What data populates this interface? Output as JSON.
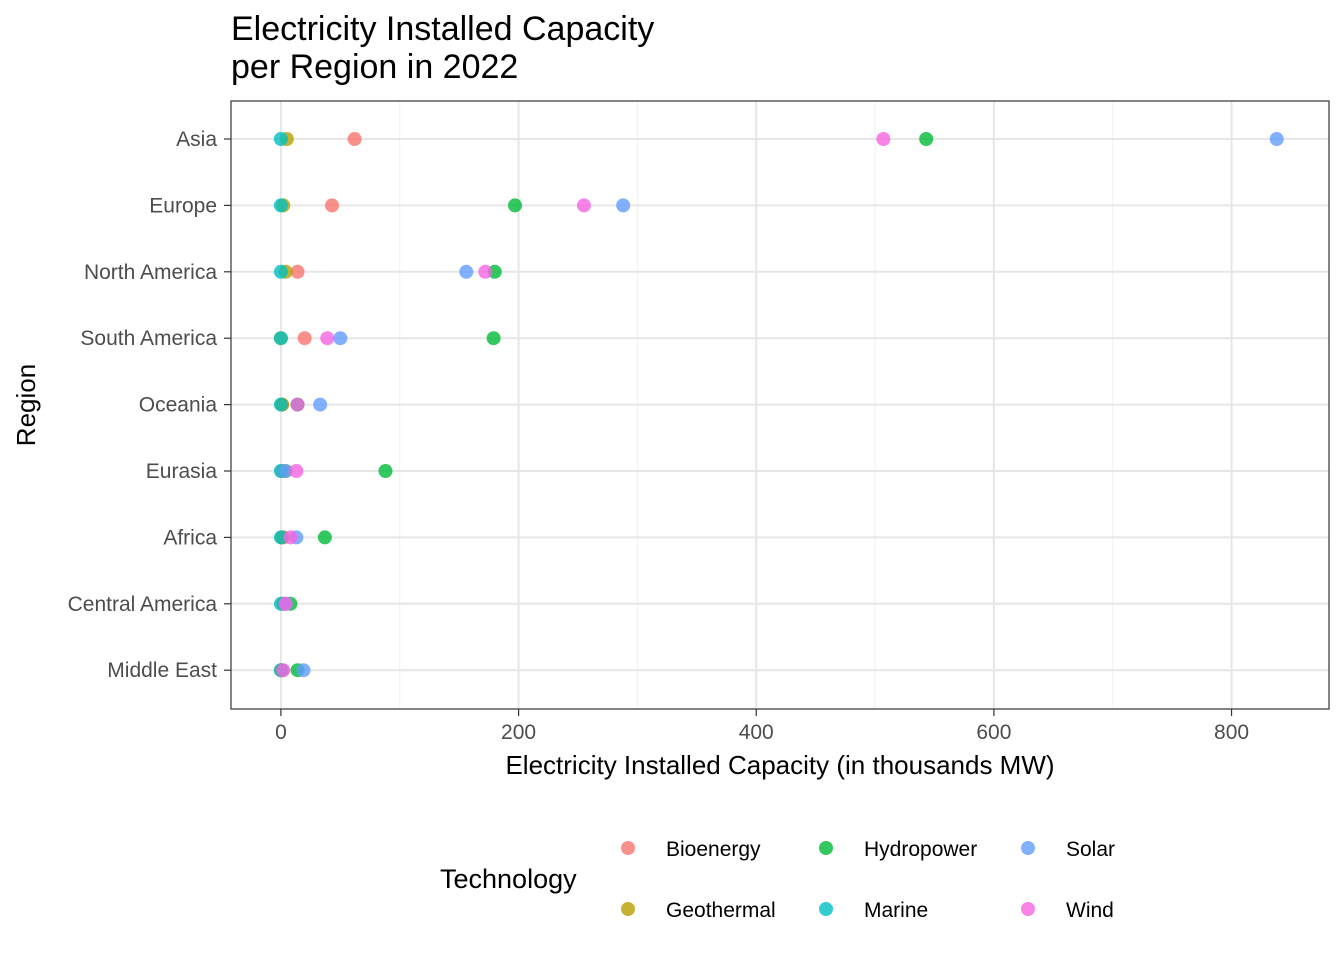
{
  "chart_data": {
    "type": "scatter",
    "title_lines": [
      "Electricity Installed Capacity",
      "per Region in 2022"
    ],
    "xlabel": "Electricity Installed Capacity (in thousands MW)",
    "ylabel": "Region",
    "xlim": [
      -42,
      882
    ],
    "x_ticks": [
      0,
      200,
      400,
      600,
      800
    ],
    "categories": [
      "Asia",
      "Europe",
      "North America",
      "South America",
      "Oceania",
      "Eurasia",
      "Africa",
      "Central America",
      "Middle East"
    ],
    "grid": true,
    "legend": {
      "title": "Technology",
      "position": "bottom",
      "ncol": 3
    },
    "series": [
      {
        "name": "Bioenergy",
        "color": "#F8766D",
        "points": [
          {
            "region": "Asia",
            "x": 62
          },
          {
            "region": "Europe",
            "x": 43
          },
          {
            "region": "North America",
            "x": 14
          },
          {
            "region": "South America",
            "x": 20
          },
          {
            "region": "Oceania",
            "x": 1
          },
          {
            "region": "Eurasia",
            "x": 1
          },
          {
            "region": "Africa",
            "x": 2
          },
          {
            "region": "Central America",
            "x": 2
          },
          {
            "region": "Middle East",
            "x": 1
          }
        ]
      },
      {
        "name": "Geothermal",
        "color": "#B79F00",
        "points": [
          {
            "region": "Asia",
            "x": 5
          },
          {
            "region": "Europe",
            "x": 2
          },
          {
            "region": "North America",
            "x": 4
          },
          {
            "region": "South America",
            "x": 0
          },
          {
            "region": "Oceania",
            "x": 1
          },
          {
            "region": "Eurasia",
            "x": 4
          },
          {
            "region": "Africa",
            "x": 1
          },
          {
            "region": "Central America",
            "x": 2
          },
          {
            "region": "Middle East",
            "x": 0
          }
        ]
      },
      {
        "name": "Hydropower",
        "color": "#00BA38",
        "points": [
          {
            "region": "Asia",
            "x": 543
          },
          {
            "region": "Europe",
            "x": 197
          },
          {
            "region": "North America",
            "x": 180
          },
          {
            "region": "South America",
            "x": 179
          },
          {
            "region": "Oceania",
            "x": 14
          },
          {
            "region": "Eurasia",
            "x": 88
          },
          {
            "region": "Africa",
            "x": 37
          },
          {
            "region": "Central America",
            "x": 8
          },
          {
            "region": "Middle East",
            "x": 14
          }
        ]
      },
      {
        "name": "Marine",
        "color": "#00BFC4",
        "points": [
          {
            "region": "Asia",
            "x": 0
          },
          {
            "region": "Europe",
            "x": 0
          },
          {
            "region": "North America",
            "x": 0
          },
          {
            "region": "South America",
            "x": 0
          },
          {
            "region": "Oceania",
            "x": 0
          },
          {
            "region": "Eurasia",
            "x": 0
          },
          {
            "region": "Africa",
            "x": 0
          },
          {
            "region": "Central America",
            "x": 0
          },
          {
            "region": "Middle East",
            "x": 0
          }
        ]
      },
      {
        "name": "Solar",
        "color": "#619CFF",
        "points": [
          {
            "region": "Asia",
            "x": 838
          },
          {
            "region": "Europe",
            "x": 288
          },
          {
            "region": "North America",
            "x": 156
          },
          {
            "region": "South America",
            "x": 50
          },
          {
            "region": "Oceania",
            "x": 33
          },
          {
            "region": "Eurasia",
            "x": 4
          },
          {
            "region": "Africa",
            "x": 13
          },
          {
            "region": "Central America",
            "x": 4
          },
          {
            "region": "Middle East",
            "x": 19
          }
        ]
      },
      {
        "name": "Wind",
        "color": "#F564E3",
        "points": [
          {
            "region": "Asia",
            "x": 507
          },
          {
            "region": "Europe",
            "x": 255
          },
          {
            "region": "North America",
            "x": 172
          },
          {
            "region": "South America",
            "x": 39
          },
          {
            "region": "Oceania",
            "x": 14
          },
          {
            "region": "Eurasia",
            "x": 13
          },
          {
            "region": "Africa",
            "x": 8
          },
          {
            "region": "Central America",
            "x": 4
          },
          {
            "region": "Middle East",
            "x": 2
          }
        ]
      }
    ]
  }
}
